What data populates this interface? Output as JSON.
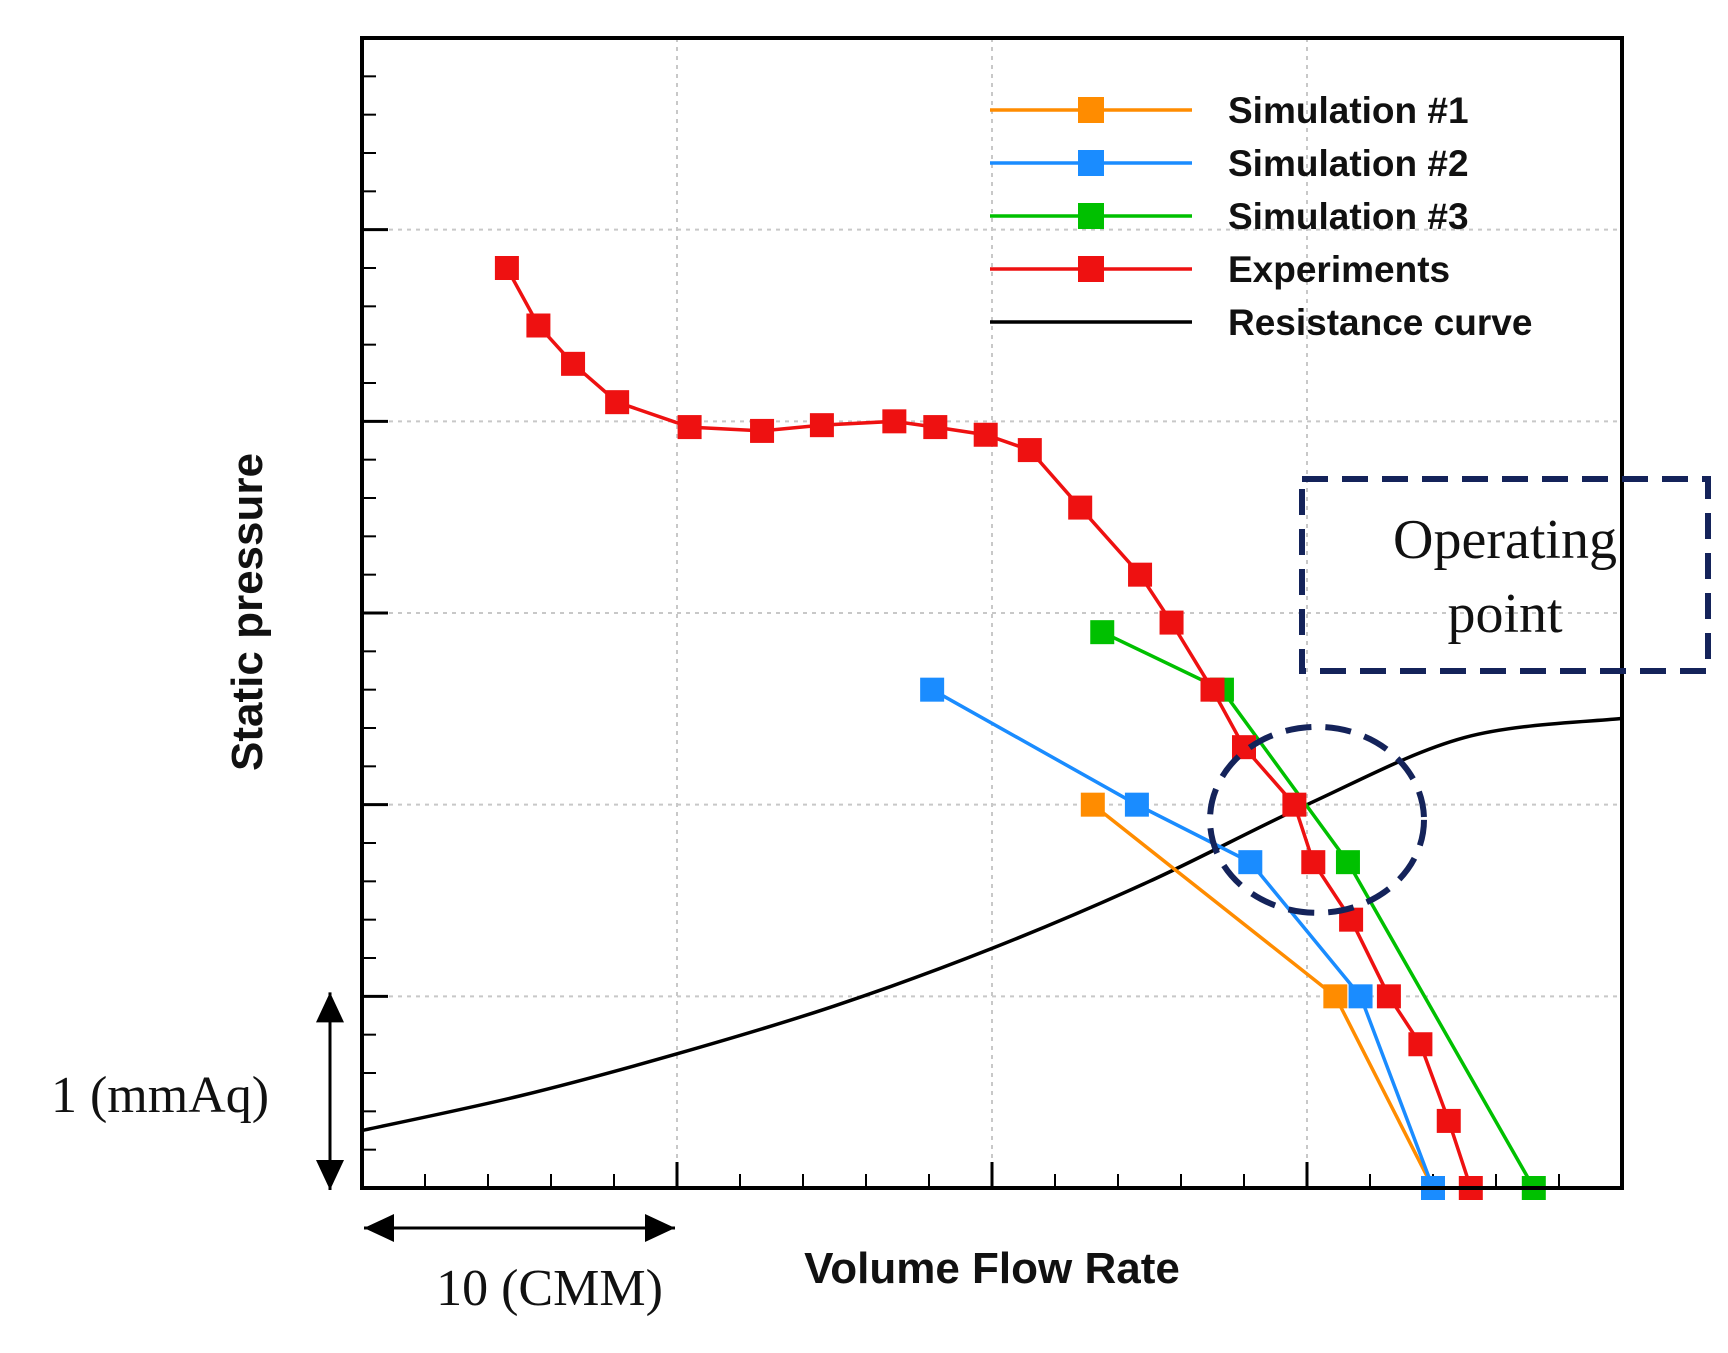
{
  "chart_data": {
    "type": "line",
    "title": "",
    "xlabel": "Volume Flow Rate",
    "ylabel": "Static pressure",
    "xlim": [
      0,
      40
    ],
    "ylim": [
      0,
      6
    ],
    "grid": true,
    "x_major_step": 10,
    "x_minor_step": 2,
    "y_major_step": 1,
    "y_minor_step": 0.2,
    "legend_position": "top-right",
    "scale_annotations": {
      "x": "10 (CMM)",
      "y": "1 (mmAq)"
    },
    "callout": {
      "text_line1": "Operating",
      "text_line2": "point",
      "x": 30,
      "y": 1.9
    },
    "series": [
      {
        "name": "Simulation #1",
        "color": "#ff8c00",
        "marker": "square",
        "points": [
          [
            23.2,
            2.0
          ],
          [
            30.9,
            1.0
          ],
          [
            34.0,
            0.0
          ]
        ]
      },
      {
        "name": "Simulation #2",
        "color": "#1a8cff",
        "marker": "square",
        "points": [
          [
            18.1,
            2.6
          ],
          [
            24.6,
            2.0
          ],
          [
            28.2,
            1.7
          ],
          [
            31.7,
            1.0
          ],
          [
            34.0,
            0.0
          ]
        ]
      },
      {
        "name": "Simulation #3",
        "color": "#00c000",
        "marker": "square",
        "points": [
          [
            23.5,
            2.9
          ],
          [
            27.3,
            2.6
          ],
          [
            31.3,
            1.7
          ],
          [
            37.2,
            0.0
          ]
        ]
      },
      {
        "name": "Experiments",
        "color": "#ee1111",
        "marker": "square",
        "points": [
          [
            4.6,
            4.8
          ],
          [
            5.6,
            4.5
          ],
          [
            6.7,
            4.3
          ],
          [
            8.1,
            4.1
          ],
          [
            10.4,
            3.97
          ],
          [
            12.7,
            3.95
          ],
          [
            14.6,
            3.98
          ],
          [
            16.9,
            4.0
          ],
          [
            18.2,
            3.97
          ],
          [
            19.8,
            3.93
          ],
          [
            21.2,
            3.85
          ],
          [
            22.8,
            3.55
          ],
          [
            24.7,
            3.2
          ],
          [
            25.7,
            2.95
          ],
          [
            27.0,
            2.6
          ],
          [
            28.0,
            2.3
          ],
          [
            29.6,
            2.0
          ],
          [
            30.2,
            1.7
          ],
          [
            31.4,
            1.4
          ],
          [
            32.6,
            1.0
          ],
          [
            33.6,
            0.75
          ],
          [
            34.5,
            0.35
          ],
          [
            35.2,
            0.0
          ]
        ]
      },
      {
        "name": "Resistance curve",
        "color": "#000000",
        "marker": "none",
        "points": [
          [
            0,
            0.3
          ],
          [
            5,
            0.48
          ],
          [
            10,
            0.7
          ],
          [
            15,
            0.95
          ],
          [
            20,
            1.25
          ],
          [
            25,
            1.6
          ],
          [
            30,
            2.0
          ],
          [
            35,
            2.35
          ],
          [
            40,
            2.45
          ]
        ]
      }
    ]
  }
}
